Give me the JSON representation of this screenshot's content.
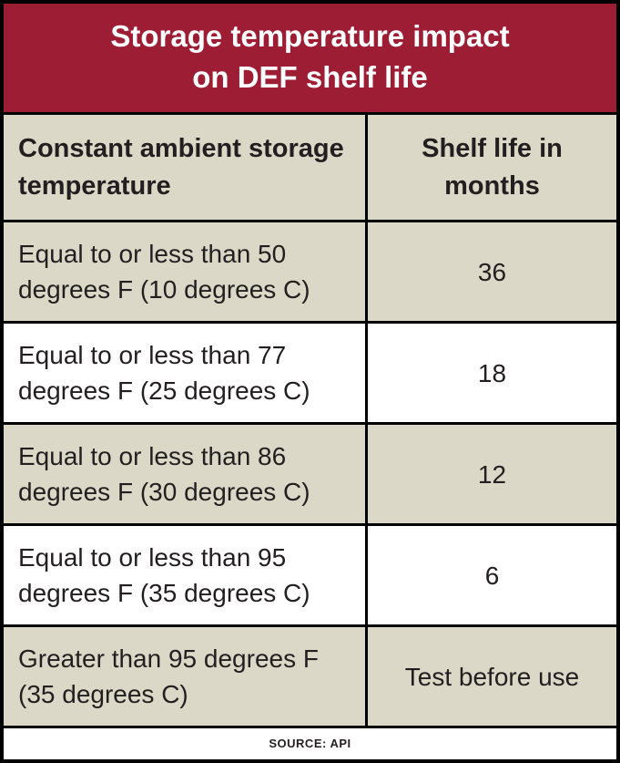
{
  "title": {
    "line1": "Storage temperature impact",
    "line2": "on DEF shelf  life"
  },
  "chart_data": {
    "type": "table",
    "title": "Storage temperature impact on DEF shelf life",
    "columns": [
      "Constant ambient storage temperature",
      "Shelf life in months"
    ],
    "rows": [
      [
        "Equal to or less than 50 degrees F (10 degrees C)",
        "36"
      ],
      [
        "Equal to or less than 77 degrees F (25 degrees C)",
        "18"
      ],
      [
        "Equal to or less than 86 degrees F (30 degrees C)",
        "12"
      ],
      [
        "Equal to or less than 95 degrees F (35 degrees C)",
        "6"
      ],
      [
        "Greater than 95 degrees F (35 degrees C)",
        "Test before use"
      ]
    ],
    "source": "SOURCE: API",
    "layout": {
      "header_background": "#dcd8c7",
      "shaded_row_background": "#dcd8c7",
      "title_background": "#9d1d35",
      "border_color": "#000000",
      "shaded_rows": [
        0,
        2,
        4
      ]
    }
  }
}
